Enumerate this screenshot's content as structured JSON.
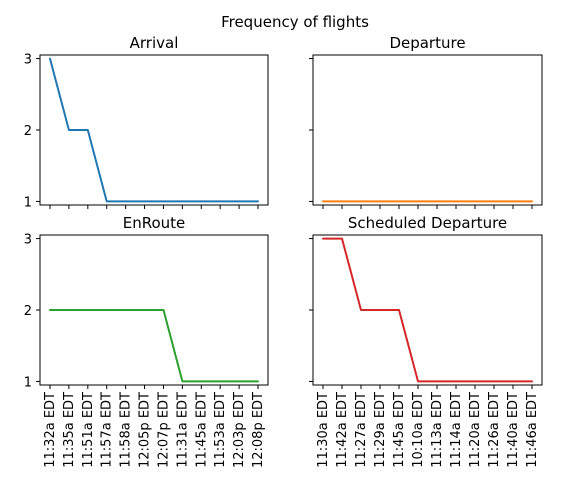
{
  "chart_data": {
    "type": "line",
    "title": "Frequency of flights",
    "shared_y_ticks": [
      1,
      2,
      3
    ],
    "subplots": [
      {
        "name": "Arrival",
        "title": "Arrival",
        "color": "#1f77b4",
        "ylim": [
          0.95,
          3.05
        ],
        "show_x_labels": false,
        "x": [
          "11:32a EDT",
          "11:35a EDT",
          "11:51a EDT",
          "11:57a EDT",
          "11:58a EDT",
          "12:05p EDT",
          "12:07p EDT",
          "11:31a EDT",
          "11:45a EDT",
          "11:53a EDT",
          "12:03p EDT",
          "12:08p EDT"
        ],
        "values": [
          3,
          2,
          2,
          1,
          1,
          1,
          1,
          1,
          1,
          1,
          1,
          1
        ]
      },
      {
        "name": "Departure",
        "title": "Departure",
        "color": "#ff7f0e",
        "ylim": [
          0.95,
          3.05
        ],
        "show_x_labels": false,
        "x": [
          "11:30a EDT",
          "11:42a EDT",
          "11:27a EDT",
          "11:29a EDT",
          "11:45a EDT",
          "10:10a EDT",
          "11:13a EDT",
          "11:14a EDT",
          "11:20a EDT",
          "11:26a EDT",
          "11:40a EDT",
          "11:46a EDT"
        ],
        "values": [
          1,
          1,
          1,
          1,
          1,
          1,
          1,
          1,
          1,
          1,
          1,
          1
        ]
      },
      {
        "name": "EnRoute",
        "title": "EnRoute",
        "color": "#2ca02c",
        "ylim": [
          0.95,
          3.05
        ],
        "show_x_labels": true,
        "x": [
          "11:32a EDT",
          "11:35a EDT",
          "11:51a EDT",
          "11:57a EDT",
          "11:58a EDT",
          "12:05p EDT",
          "12:07p EDT",
          "11:31a EDT",
          "11:45a EDT",
          "11:53a EDT",
          "12:03p EDT",
          "12:08p EDT"
        ],
        "values": [
          2,
          2,
          2,
          2,
          2,
          2,
          2,
          1,
          1,
          1,
          1,
          1
        ]
      },
      {
        "name": "Scheduled Departure",
        "title": "Scheduled Departure",
        "color": "#d62728",
        "ylim": [
          0.95,
          3.05
        ],
        "show_x_labels": true,
        "x": [
          "11:30a EDT",
          "11:42a EDT",
          "11:27a EDT",
          "11:29a EDT",
          "11:45a EDT",
          "10:10a EDT",
          "11:13a EDT",
          "11:14a EDT",
          "11:20a EDT",
          "11:26a EDT",
          "11:40a EDT",
          "11:46a EDT"
        ],
        "values": [
          3,
          3,
          2,
          2,
          2,
          1,
          1,
          1,
          1,
          1,
          1,
          1
        ]
      }
    ]
  }
}
